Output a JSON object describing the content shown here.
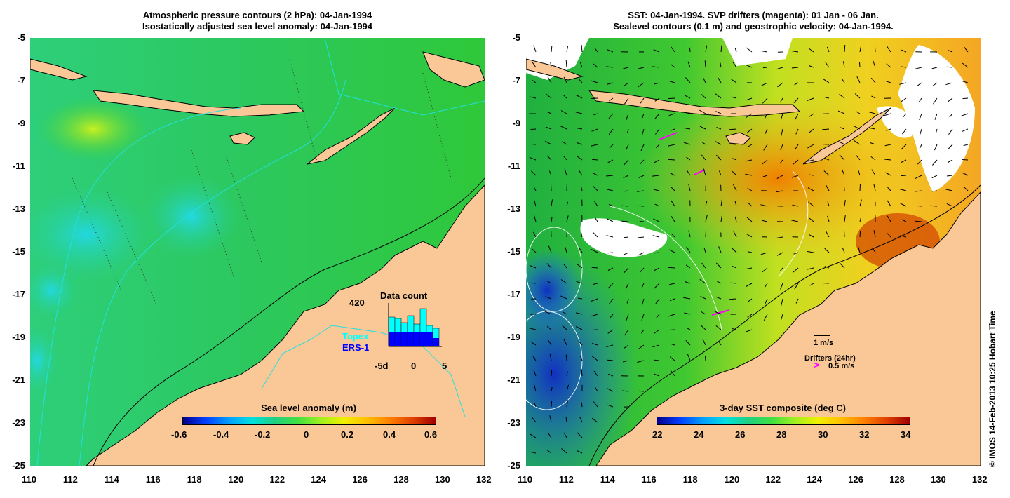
{
  "left": {
    "title_line1": "Atmospheric pressure contours (2 hPa): 04-Jan-1994",
    "title_line2": "Isostatically adjusted sea level anomaly: 04-Jan-1994",
    "inset": {
      "title": "Data count",
      "count_label": "420",
      "legend_topex": "Topex",
      "legend_ers": "ERS-1",
      "x_ticks": [
        "-5d",
        "0",
        "5"
      ],
      "topex_color": "#00ffff",
      "ers_color": "#0000ff"
    },
    "colorbar": {
      "title": "Sea level anomaly (m)",
      "ticks": [
        "-0.6",
        "-0.4",
        "-0.2",
        "0",
        "0.2",
        "0.4",
        "0.6"
      ]
    }
  },
  "right": {
    "title_line1": "SST: 04-Jan-1994. SVP drifters (magenta): 01 Jan - 06 Jan.",
    "title_line2": "Sealevel contours (0.1 m) and geostrophic velocity: 04-Jan-1994.",
    "vector_label": "1 m/s",
    "drifters_label": "Drifters (24hr)",
    "drifters_speed": "0.5 m/s",
    "drifter_color": "#ff00ff",
    "colorbar": {
      "title": "3-day SST composite (deg C)",
      "ticks": [
        "22",
        "24",
        "26",
        "28",
        "30",
        "32",
        "34"
      ]
    }
  },
  "axes": {
    "lat_ticks": [
      "-5",
      "-7",
      "-9",
      "-11",
      "-13",
      "-15",
      "-17",
      "-19",
      "-21",
      "-23",
      "-25"
    ],
    "lon_ticks": [
      "110",
      "112",
      "114",
      "116",
      "118",
      "120",
      "122",
      "124",
      "126",
      "128",
      "130",
      "132"
    ]
  },
  "credit": "© IMOS 14-Feb-2013 10:25 Hobart Time",
  "colors": {
    "land": "#f9c896",
    "ocean_green": "#2ec83a",
    "ocean_teal": "#26d08a",
    "ocean_cyan": "#22d8d0",
    "sst_orange": "#f5a623",
    "sst_yellow": "#e8e820",
    "sst_blue": "#1a4fd8"
  }
}
